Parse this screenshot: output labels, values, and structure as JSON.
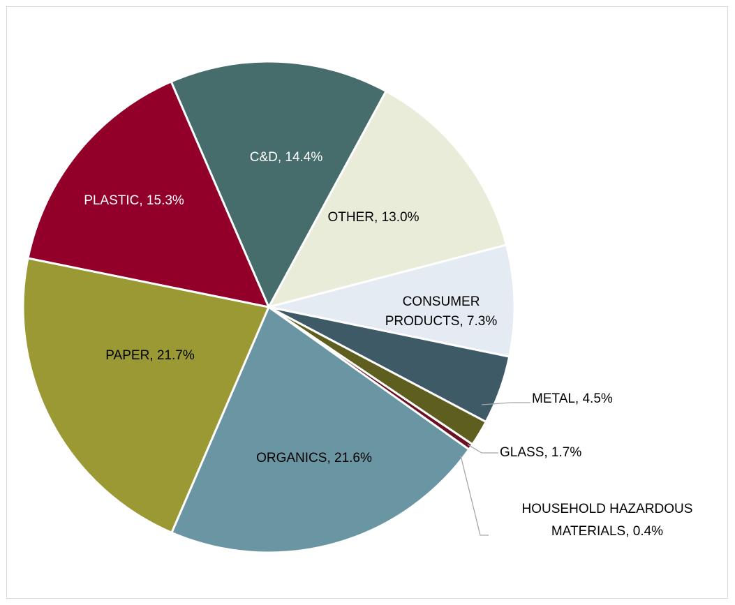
{
  "chart_data": {
    "type": "pie",
    "title": "",
    "slices": [
      {
        "category": "OTHER",
        "value": 13.0,
        "label": "OTHER, 13.0%",
        "color": "#e9ecd9",
        "text_color": "#000000"
      },
      {
        "category": "CONSUMER PRODUCTS",
        "value": 7.3,
        "label": "CONSUMER PRODUCTS, 7.3%",
        "label_lines": [
          "CONSUMER",
          "PRODUCTS, 7.3%"
        ],
        "color": "#e4ebf2",
        "text_color": "#000000"
      },
      {
        "category": "METAL",
        "value": 4.5,
        "label": "METAL, 4.5%",
        "color": "#3d5a66",
        "text_color": "#000000"
      },
      {
        "category": "GLASS",
        "value": 1.7,
        "label": "GLASS, 1.7%",
        "color": "#5e5e1f",
        "text_color": "#000000"
      },
      {
        "category": "HOUSEHOLD HAZARDOUS MATERIALS",
        "value": 0.4,
        "label": "HOUSEHOLD HAZARDOUS MATERIALS, 0.4%",
        "label_lines": [
          "HOUSEHOLD HAZARDOUS",
          "MATERIALS, 0.4%"
        ],
        "color": "#6b0f22",
        "text_color": "#000000"
      },
      {
        "category": "ORGANICS",
        "value": 21.6,
        "label": "ORGANICS, 21.6%",
        "color": "#6a95a3",
        "text_color": "#000000"
      },
      {
        "category": "PAPER",
        "value": 21.7,
        "label": "PAPER, 21.7%",
        "color": "#9a9934",
        "text_color": "#000000"
      },
      {
        "category": "PLASTIC",
        "value": 15.3,
        "label": "PLASTIC, 15.3%",
        "color": "#92002a",
        "text_color": "#ffffff"
      },
      {
        "category": "C&D",
        "value": 14.4,
        "label": "C&D, 14.4%",
        "color": "#476c6c",
        "text_color": "#ffffff"
      }
    ]
  }
}
